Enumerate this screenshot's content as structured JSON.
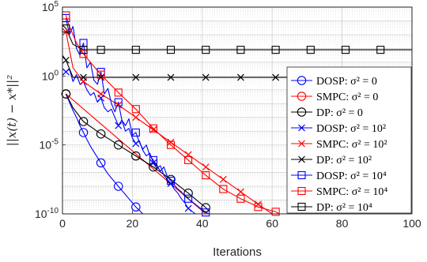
{
  "chart_data": {
    "type": "line",
    "xlabel": "Iterations",
    "ylabel": "||x(t) − x*||²",
    "xlim": [
      0,
      100
    ],
    "ylim_log10": [
      -10,
      5
    ],
    "x_ticks": [
      0,
      20,
      40,
      60,
      80,
      100
    ],
    "x_tick_labels": [
      "0",
      "20",
      "40",
      "60",
      "80",
      "100"
    ],
    "y_tick_labels": [
      "10",
      "10",
      "10",
      "10"
    ],
    "y_tick_exponents": [
      "-10",
      "-5",
      "0",
      "5"
    ],
    "y_tick_values_log10": [
      -10,
      -5,
      0,
      5
    ],
    "grid": true,
    "legend_position": "right",
    "series": [
      {
        "name": "DOSP: σ² = 0",
        "color": "#0000ff",
        "marker": "circle",
        "points": [
          [
            1,
            -1.3
          ],
          [
            2,
            -1.9
          ],
          [
            3,
            -2.5
          ],
          [
            4,
            -3.0
          ],
          [
            5,
            -3.6
          ],
          [
            6,
            -4.1
          ],
          [
            7,
            -4.6
          ],
          [
            8,
            -5.1
          ],
          [
            9,
            -5.5
          ],
          [
            10,
            -5.9
          ],
          [
            11,
            -6.3
          ],
          [
            12,
            -6.7
          ],
          [
            13,
            -7.1
          ],
          [
            14,
            -7.4
          ],
          [
            15,
            -7.7
          ],
          [
            16,
            -8.0
          ],
          [
            17,
            -8.3
          ],
          [
            18,
            -8.6
          ],
          [
            19,
            -8.9
          ],
          [
            20,
            -9.2
          ],
          [
            21,
            -9.5
          ],
          [
            22,
            -9.75
          ],
          [
            23,
            -10.0
          ]
        ],
        "marker_points": [
          [
            1,
            -1.3
          ],
          [
            6,
            -4.1
          ],
          [
            11,
            -6.3
          ],
          [
            16,
            -8.0
          ],
          [
            21,
            -9.5
          ]
        ]
      },
      {
        "name": "SMPC: σ² = 0",
        "color": "#ff0000",
        "marker": "circle",
        "points": [
          [
            1,
            -1.3
          ],
          [
            41,
            -10.0
          ]
        ],
        "marker_points": [
          [
            1,
            -1.3
          ]
        ]
      },
      {
        "name": "DP: σ² = 0",
        "color": "#000000",
        "marker": "circle",
        "points": [
          [
            1,
            -1.3
          ],
          [
            3,
            -2.3
          ],
          [
            6,
            -3.3
          ],
          [
            11,
            -4.2
          ],
          [
            16,
            -5.0
          ],
          [
            21,
            -5.8
          ],
          [
            26,
            -6.6
          ],
          [
            31,
            -7.5
          ],
          [
            36,
            -8.5
          ],
          [
            41,
            -9.55
          ],
          [
            42,
            -9.8
          ]
        ],
        "marker_points": [
          [
            1,
            -1.3
          ],
          [
            6,
            -3.3
          ],
          [
            11,
            -4.2
          ],
          [
            16,
            -5.0
          ],
          [
            21,
            -5.8
          ],
          [
            26,
            -6.6
          ],
          [
            31,
            -7.5
          ],
          [
            36,
            -8.5
          ],
          [
            41,
            -9.55
          ]
        ]
      },
      {
        "name": "DOSP: σ² = 10²",
        "color": "#0000ff",
        "marker": "x",
        "points": [
          [
            1,
            0.3
          ],
          [
            2,
            0.5
          ],
          [
            3,
            -0.4
          ],
          [
            4,
            0.1
          ],
          [
            5,
            -0.6
          ],
          [
            6,
            -0.4
          ],
          [
            7,
            -1.0
          ],
          [
            8,
            -1.4
          ],
          [
            9,
            -1.2
          ],
          [
            10,
            -1.9
          ],
          [
            11,
            -1.6
          ],
          [
            12,
            -2.3
          ],
          [
            13,
            -2.6
          ],
          [
            14,
            -2.4
          ],
          [
            15,
            -3.0
          ],
          [
            16,
            -3.6
          ],
          [
            17,
            -3.2
          ],
          [
            18,
            -4.0
          ],
          [
            19,
            -3.8
          ],
          [
            20,
            -4.5
          ],
          [
            21,
            -4.9
          ],
          [
            22,
            -4.7
          ],
          [
            23,
            -5.4
          ],
          [
            24,
            -5.8
          ],
          [
            25,
            -5.6
          ],
          [
            26,
            -6.3
          ],
          [
            27,
            -6.7
          ],
          [
            28,
            -6.5
          ],
          [
            29,
            -7.2
          ],
          [
            30,
            -7.5
          ],
          [
            31,
            -7.8
          ],
          [
            32,
            -8.2
          ],
          [
            33,
            -8.5
          ],
          [
            34,
            -8.9
          ],
          [
            35,
            -9.2
          ],
          [
            36,
            -9.6
          ],
          [
            37,
            -9.8
          ],
          [
            38,
            -10.0
          ]
        ],
        "marker_points": [
          [
            1,
            0.3
          ],
          [
            6,
            -0.4
          ],
          [
            11,
            -1.6
          ],
          [
            16,
            -3.6
          ],
          [
            21,
            -4.9
          ],
          [
            26,
            -6.3
          ],
          [
            31,
            -7.8
          ],
          [
            36,
            -9.6
          ]
        ]
      },
      {
        "name": "SMPC: σ² = 10²",
        "color": "#ff0000",
        "marker": "x",
        "points": [
          [
            1,
            3.2
          ],
          [
            3,
            0.6
          ],
          [
            6,
            -0.4
          ],
          [
            11,
            -1.3
          ],
          [
            16,
            -2.1
          ],
          [
            21,
            -3.0
          ],
          [
            26,
            -3.9
          ],
          [
            31,
            -4.8
          ],
          [
            36,
            -5.7
          ],
          [
            41,
            -6.6
          ],
          [
            46,
            -7.5
          ],
          [
            51,
            -8.4
          ],
          [
            56,
            -9.3
          ],
          [
            60,
            -10.0
          ]
        ],
        "marker_points": [
          [
            1,
            3.2
          ],
          [
            6,
            -0.4
          ],
          [
            11,
            -1.3
          ],
          [
            16,
            -2.1
          ],
          [
            21,
            -3.0
          ],
          [
            26,
            -3.9
          ],
          [
            31,
            -4.8
          ],
          [
            36,
            -5.7
          ],
          [
            41,
            -6.6
          ],
          [
            46,
            -7.5
          ],
          [
            51,
            -8.4
          ],
          [
            56,
            -9.3
          ]
        ]
      },
      {
        "name": "DP: σ² = 10²",
        "color": "#000000",
        "marker": "x",
        "points": [
          [
            0,
            1.5
          ],
          [
            1,
            1.15
          ],
          [
            3,
            -0.1
          ],
          [
            6,
            -0.1
          ],
          [
            11,
            -0.1
          ],
          [
            100,
            -0.1
          ]
        ],
        "marker_points": [
          [
            1,
            1.15
          ],
          [
            6,
            -0.1
          ],
          [
            11,
            -0.1
          ],
          [
            21,
            -0.1
          ],
          [
            31,
            -0.1
          ],
          [
            41,
            -0.1
          ],
          [
            51,
            -0.1
          ],
          [
            61,
            -0.1
          ],
          [
            71,
            -0.1
          ],
          [
            81,
            -0.1
          ],
          [
            91,
            -0.1
          ]
        ]
      },
      {
        "name": "DOSP: σ² = 10⁴",
        "color": "#0000ff",
        "marker": "square",
        "points": [
          [
            1,
            4.2
          ],
          [
            2,
            3.0
          ],
          [
            3,
            3.6
          ],
          [
            4,
            2.0
          ],
          [
            5,
            1.5
          ],
          [
            6,
            2.4
          ],
          [
            7,
            0.6
          ],
          [
            8,
            1.0
          ],
          [
            9,
            -0.3
          ],
          [
            10,
            -0.6
          ],
          [
            11,
            0.3
          ],
          [
            12,
            -1.3
          ],
          [
            13,
            -0.9
          ],
          [
            14,
            -2.0
          ],
          [
            15,
            -2.6
          ],
          [
            16,
            -1.9
          ],
          [
            17,
            -3.2
          ],
          [
            18,
            -3.6
          ],
          [
            19,
            -3.1
          ],
          [
            20,
            -4.3
          ],
          [
            21,
            -4.1
          ],
          [
            22,
            -4.8
          ],
          [
            23,
            -5.3
          ],
          [
            24,
            -5.0
          ],
          [
            25,
            -5.8
          ],
          [
            26,
            -6.1
          ],
          [
            27,
            -6.5
          ],
          [
            28,
            -6.9
          ],
          [
            29,
            -6.6
          ],
          [
            30,
            -7.3
          ],
          [
            31,
            -7.6
          ],
          [
            32,
            -7.9
          ],
          [
            33,
            -8.2
          ],
          [
            34,
            -8.4
          ],
          [
            35,
            -8.7
          ],
          [
            36,
            -8.9
          ],
          [
            37,
            -9.1
          ],
          [
            38,
            -9.3
          ],
          [
            39,
            -9.5
          ],
          [
            40,
            -9.7
          ],
          [
            41,
            -9.9
          ],
          [
            42,
            -10.0
          ]
        ],
        "marker_points": [
          [
            1,
            4.2
          ],
          [
            6,
            2.4
          ],
          [
            11,
            0.3
          ],
          [
            16,
            -1.9
          ],
          [
            21,
            -4.1
          ],
          [
            26,
            -6.1
          ],
          [
            31,
            -7.6
          ],
          [
            36,
            -8.9
          ],
          [
            41,
            -9.9
          ]
        ]
      },
      {
        "name": "SMPC: σ² = 10⁴",
        "color": "#ff0000",
        "marker": "square",
        "points": [
          [
            1,
            4.4
          ],
          [
            2,
            3.6
          ],
          [
            3,
            3.0
          ],
          [
            4,
            2.4
          ],
          [
            6,
            1.6
          ],
          [
            11,
            0.1
          ],
          [
            16,
            -1.2
          ],
          [
            21,
            -2.4
          ],
          [
            26,
            -3.8
          ],
          [
            31,
            -5.0
          ],
          [
            36,
            -6.1
          ],
          [
            41,
            -7.2
          ],
          [
            46,
            -8.2
          ],
          [
            51,
            -8.9
          ],
          [
            56,
            -9.5
          ],
          [
            61,
            -9.85
          ],
          [
            62,
            -10.0
          ]
        ],
        "marker_points": [
          [
            1,
            4.4
          ],
          [
            6,
            1.6
          ],
          [
            11,
            0.1
          ],
          [
            16,
            -1.2
          ],
          [
            21,
            -2.4
          ],
          [
            26,
            -3.8
          ],
          [
            31,
            -5.0
          ],
          [
            36,
            -6.1
          ],
          [
            41,
            -7.2
          ],
          [
            46,
            -8.2
          ],
          [
            51,
            -8.9
          ],
          [
            56,
            -9.5
          ],
          [
            61,
            -9.85
          ]
        ]
      },
      {
        "name": "DP: σ² = 10⁴",
        "color": "#000000",
        "marker": "square",
        "points": [
          [
            0,
            3.7
          ],
          [
            1,
            3.45
          ],
          [
            3,
            2.3
          ],
          [
            6,
            1.9
          ],
          [
            11,
            1.9
          ],
          [
            100,
            1.9
          ]
        ],
        "marker_points": [
          [
            1,
            3.45
          ],
          [
            6,
            1.9
          ],
          [
            11,
            1.9
          ],
          [
            21,
            1.9
          ],
          [
            31,
            1.9
          ],
          [
            41,
            1.9
          ],
          [
            51,
            1.9
          ],
          [
            61,
            1.9
          ],
          [
            71,
            1.9
          ],
          [
            81,
            1.9
          ],
          [
            91,
            1.9
          ]
        ]
      }
    ]
  }
}
